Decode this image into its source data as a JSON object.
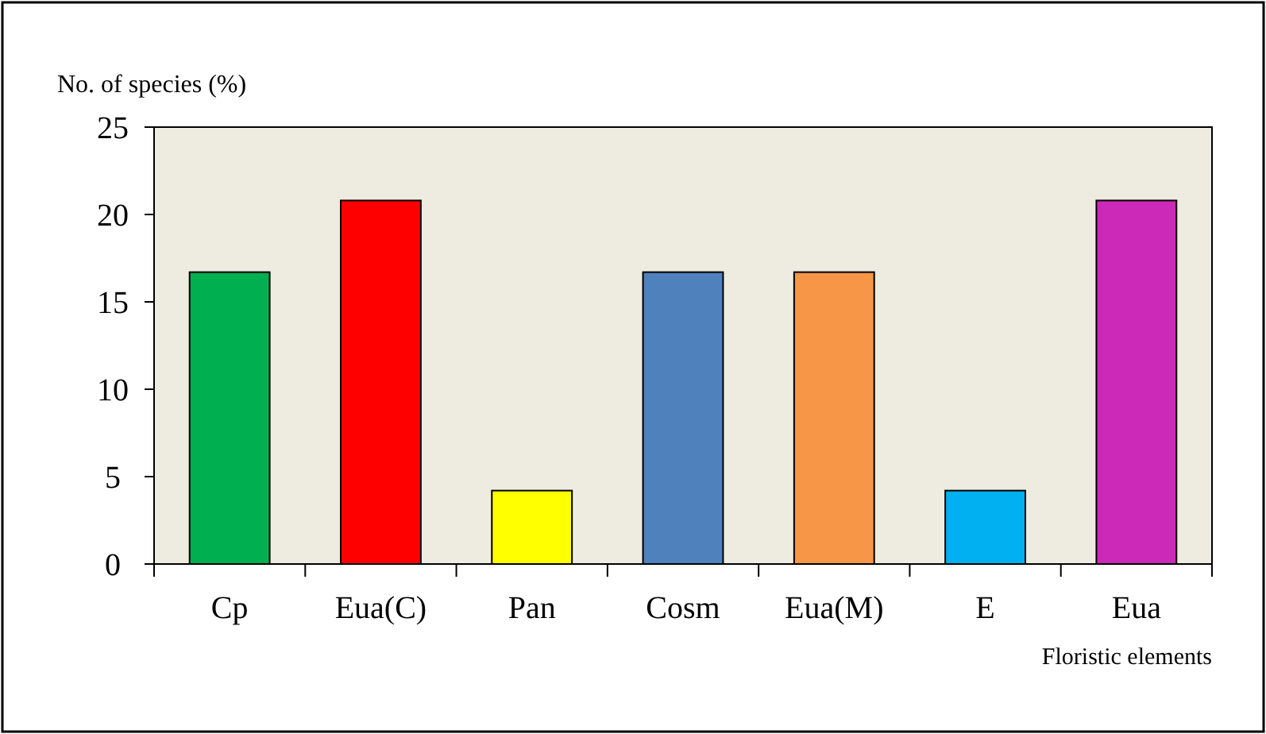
{
  "chart_data": {
    "type": "bar",
    "xlabel": "Floristic elements",
    "ylabel": "No. of species (%)",
    "categories": [
      "Cp",
      "Eua(C)",
      "Pan",
      "Cosm",
      "Eua(M)",
      "E",
      "Eua"
    ],
    "values": [
      16.7,
      20.8,
      4.2,
      16.7,
      16.7,
      4.2,
      20.8
    ],
    "colors": [
      "#00b050",
      "#ff0000",
      "#ffff00",
      "#4f81bd",
      "#f79646",
      "#00b0f0",
      "#cc29b8"
    ],
    "ylim": [
      0,
      25
    ],
    "yticks": [
      0,
      5,
      10,
      15,
      20,
      25
    ]
  }
}
